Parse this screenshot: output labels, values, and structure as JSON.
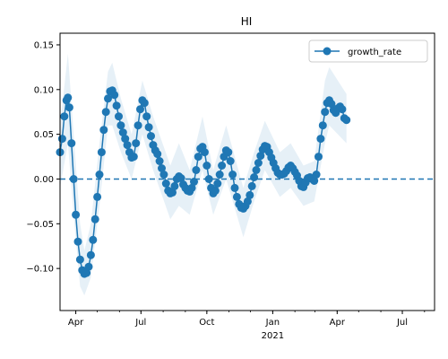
{
  "chart_data": {
    "type": "line",
    "title": "HI",
    "xlabel": "",
    "ylabel": "",
    "x_range": [
      "2020-03-10",
      "2021-08-15"
    ],
    "ylim": [
      -0.147,
      0.163
    ],
    "grid": false,
    "legend_position": "top-right",
    "colors": {
      "series": "#1f77b4",
      "band": "#1f77b4",
      "zero_line": "#1f77b4"
    },
    "x_ticks": [
      {
        "date": "2020-04-01",
        "label": "Apr",
        "sublabel": ""
      },
      {
        "date": "2020-07-01",
        "label": "Jul",
        "sublabel": ""
      },
      {
        "date": "2020-10-01",
        "label": "Oct",
        "sublabel": ""
      },
      {
        "date": "2021-01-01",
        "label": "Jan",
        "sublabel": "2021"
      },
      {
        "date": "2021-04-01",
        "label": "Apr",
        "sublabel": ""
      },
      {
        "date": "2021-07-01",
        "label": "Jul",
        "sublabel": ""
      }
    ],
    "y_ticks": [
      {
        "value": -0.1,
        "label": "−0.10"
      },
      {
        "value": -0.05,
        "label": "−0.05"
      },
      {
        "value": 0.0,
        "label": "0.00"
      },
      {
        "value": 0.05,
        "label": "0.05"
      },
      {
        "value": 0.1,
        "label": "0.10"
      },
      {
        "value": 0.15,
        "label": "0.15"
      }
    ],
    "reference_line": {
      "y": 0.0,
      "style": "dashed"
    },
    "series": [
      {
        "name": "growth_rate",
        "marker": "circle",
        "points": [
          [
            "2020-03-10",
            0.03
          ],
          [
            "2020-03-13",
            0.045
          ],
          [
            "2020-03-16",
            0.07
          ],
          [
            "2020-03-19",
            0.088
          ],
          [
            "2020-03-21",
            0.091
          ],
          [
            "2020-03-23",
            0.08
          ],
          [
            "2020-03-26",
            0.04
          ],
          [
            "2020-03-29",
            0.0
          ],
          [
            "2020-04-01",
            -0.04
          ],
          [
            "2020-04-04",
            -0.07
          ],
          [
            "2020-04-07",
            -0.09
          ],
          [
            "2020-04-10",
            -0.102
          ],
          [
            "2020-04-13",
            -0.106
          ],
          [
            "2020-04-16",
            -0.105
          ],
          [
            "2020-04-19",
            -0.098
          ],
          [
            "2020-04-22",
            -0.085
          ],
          [
            "2020-04-25",
            -0.068
          ],
          [
            "2020-04-28",
            -0.045
          ],
          [
            "2020-05-01",
            -0.02
          ],
          [
            "2020-05-04",
            0.005
          ],
          [
            "2020-05-07",
            0.03
          ],
          [
            "2020-05-10",
            0.055
          ],
          [
            "2020-05-13",
            0.075
          ],
          [
            "2020-05-16",
            0.09
          ],
          [
            "2020-05-19",
            0.098
          ],
          [
            "2020-05-22",
            0.099
          ],
          [
            "2020-05-25",
            0.094
          ],
          [
            "2020-05-28",
            0.082
          ],
          [
            "2020-05-31",
            0.07
          ],
          [
            "2020-06-03",
            0.06
          ],
          [
            "2020-06-06",
            0.052
          ],
          [
            "2020-06-09",
            0.045
          ],
          [
            "2020-06-12",
            0.038
          ],
          [
            "2020-06-15",
            0.03
          ],
          [
            "2020-06-18",
            0.024
          ],
          [
            "2020-06-21",
            0.025
          ],
          [
            "2020-06-24",
            0.04
          ],
          [
            "2020-06-27",
            0.06
          ],
          [
            "2020-06-30",
            0.078
          ],
          [
            "2020-07-03",
            0.088
          ],
          [
            "2020-07-06",
            0.085
          ],
          [
            "2020-07-09",
            0.07
          ],
          [
            "2020-07-12",
            0.058
          ],
          [
            "2020-07-15",
            0.048
          ],
          [
            "2020-07-18",
            0.038
          ],
          [
            "2020-07-21",
            0.032
          ],
          [
            "2020-07-24",
            0.028
          ],
          [
            "2020-07-27",
            0.02
          ],
          [
            "2020-07-30",
            0.012
          ],
          [
            "2020-08-02",
            0.005
          ],
          [
            "2020-08-05",
            -0.005
          ],
          [
            "2020-08-08",
            -0.013
          ],
          [
            "2020-08-11",
            -0.016
          ],
          [
            "2020-08-14",
            -0.015
          ],
          [
            "2020-08-17",
            -0.008
          ],
          [
            "2020-08-20",
            0.0
          ],
          [
            "2020-08-23",
            0.003
          ],
          [
            "2020-08-26",
            0.001
          ],
          [
            "2020-08-29",
            -0.006
          ],
          [
            "2020-09-01",
            -0.01
          ],
          [
            "2020-09-04",
            -0.013
          ],
          [
            "2020-09-07",
            -0.014
          ],
          [
            "2020-09-10",
            -0.01
          ],
          [
            "2020-09-13",
            -0.003
          ],
          [
            "2020-09-16",
            0.01
          ],
          [
            "2020-09-19",
            0.025
          ],
          [
            "2020-09-22",
            0.034
          ],
          [
            "2020-09-25",
            0.036
          ],
          [
            "2020-09-28",
            0.03
          ],
          [
            "2020-10-01",
            0.015
          ],
          [
            "2020-10-04",
            0.0
          ],
          [
            "2020-10-07",
            -0.01
          ],
          [
            "2020-10-10",
            -0.016
          ],
          [
            "2020-10-13",
            -0.013
          ],
          [
            "2020-10-16",
            -0.005
          ],
          [
            "2020-10-19",
            0.005
          ],
          [
            "2020-10-22",
            0.015
          ],
          [
            "2020-10-25",
            0.025
          ],
          [
            "2020-10-28",
            0.032
          ],
          [
            "2020-10-31",
            0.03
          ],
          [
            "2020-11-03",
            0.02
          ],
          [
            "2020-11-06",
            0.005
          ],
          [
            "2020-11-09",
            -0.01
          ],
          [
            "2020-11-12",
            -0.02
          ],
          [
            "2020-11-15",
            -0.028
          ],
          [
            "2020-11-18",
            -0.032
          ],
          [
            "2020-11-21",
            -0.033
          ],
          [
            "2020-11-24",
            -0.03
          ],
          [
            "2020-11-27",
            -0.025
          ],
          [
            "2020-11-30",
            -0.018
          ],
          [
            "2020-12-03",
            -0.008
          ],
          [
            "2020-12-06",
            0.002
          ],
          [
            "2020-12-09",
            0.01
          ],
          [
            "2020-12-12",
            0.018
          ],
          [
            "2020-12-15",
            0.026
          ],
          [
            "2020-12-18",
            0.033
          ],
          [
            "2020-12-21",
            0.037
          ],
          [
            "2020-12-24",
            0.036
          ],
          [
            "2020-12-27",
            0.03
          ],
          [
            "2020-12-30",
            0.024
          ],
          [
            "2021-01-02",
            0.018
          ],
          [
            "2021-01-05",
            0.012
          ],
          [
            "2021-01-08",
            0.007
          ],
          [
            "2021-01-11",
            0.005
          ],
          [
            "2021-01-14",
            0.005
          ],
          [
            "2021-01-17",
            0.006
          ],
          [
            "2021-01-20",
            0.009
          ],
          [
            "2021-01-23",
            0.013
          ],
          [
            "2021-01-26",
            0.015
          ],
          [
            "2021-01-29",
            0.012
          ],
          [
            "2021-02-01",
            0.008
          ],
          [
            "2021-02-04",
            0.004
          ],
          [
            "2021-02-07",
            -0.002
          ],
          [
            "2021-02-10",
            -0.008
          ],
          [
            "2021-02-13",
            -0.009
          ],
          [
            "2021-02-16",
            -0.004
          ],
          [
            "2021-02-19",
            0.001
          ],
          [
            "2021-02-22",
            0.002
          ],
          [
            "2021-02-25",
            0.0
          ],
          [
            "2021-02-28",
            -0.002
          ],
          [
            "2021-03-03",
            0.005
          ],
          [
            "2021-03-06",
            0.025
          ],
          [
            "2021-03-09",
            0.045
          ],
          [
            "2021-03-12",
            0.06
          ],
          [
            "2021-03-15",
            0.075
          ],
          [
            "2021-03-18",
            0.085
          ],
          [
            "2021-03-21",
            0.088
          ],
          [
            "2021-03-24",
            0.084
          ],
          [
            "2021-03-27",
            0.077
          ],
          [
            "2021-03-30",
            0.074
          ],
          [
            "2021-04-02",
            0.079
          ],
          [
            "2021-04-05",
            0.081
          ],
          [
            "2021-04-08",
            0.078
          ],
          [
            "2021-04-11",
            0.068
          ],
          [
            "2021-04-14",
            0.066
          ]
        ]
      }
    ],
    "band": [
      [
        "2020-03-10",
        -0.01,
        0.06
      ],
      [
        "2020-03-21",
        0.04,
        0.14
      ],
      [
        "2020-03-29",
        -0.04,
        0.05
      ],
      [
        "2020-04-07",
        -0.12,
        -0.05
      ],
      [
        "2020-04-13",
        -0.13,
        -0.08
      ],
      [
        "2020-04-22",
        -0.11,
        -0.05
      ],
      [
        "2020-05-04",
        -0.03,
        0.04
      ],
      [
        "2020-05-16",
        0.06,
        0.12
      ],
      [
        "2020-05-22",
        0.06,
        0.13
      ],
      [
        "2020-06-03",
        0.03,
        0.09
      ],
      [
        "2020-06-18",
        0.0,
        0.05
      ],
      [
        "2020-07-03",
        0.05,
        0.11
      ],
      [
        "2020-07-18",
        0.01,
        0.07
      ],
      [
        "2020-08-11",
        -0.045,
        0.015
      ],
      [
        "2020-08-23",
        -0.03,
        0.04
      ],
      [
        "2020-09-07",
        -0.04,
        0.01
      ],
      [
        "2020-09-25",
        0.01,
        0.07
      ],
      [
        "2020-10-10",
        -0.04,
        0.01
      ],
      [
        "2020-10-28",
        0.0,
        0.06
      ],
      [
        "2020-11-21",
        -0.065,
        -0.01
      ],
      [
        "2020-12-06",
        -0.025,
        0.03
      ],
      [
        "2020-12-21",
        0.01,
        0.065
      ],
      [
        "2021-01-11",
        -0.02,
        0.03
      ],
      [
        "2021-01-26",
        -0.01,
        0.04
      ],
      [
        "2021-02-13",
        -0.03,
        0.015
      ],
      [
        "2021-02-28",
        -0.025,
        0.02
      ],
      [
        "2021-03-15",
        0.04,
        0.11
      ],
      [
        "2021-03-21",
        0.06,
        0.125
      ],
      [
        "2021-04-14",
        0.04,
        0.095
      ]
    ]
  },
  "legend": {
    "label": "growth_rate"
  }
}
